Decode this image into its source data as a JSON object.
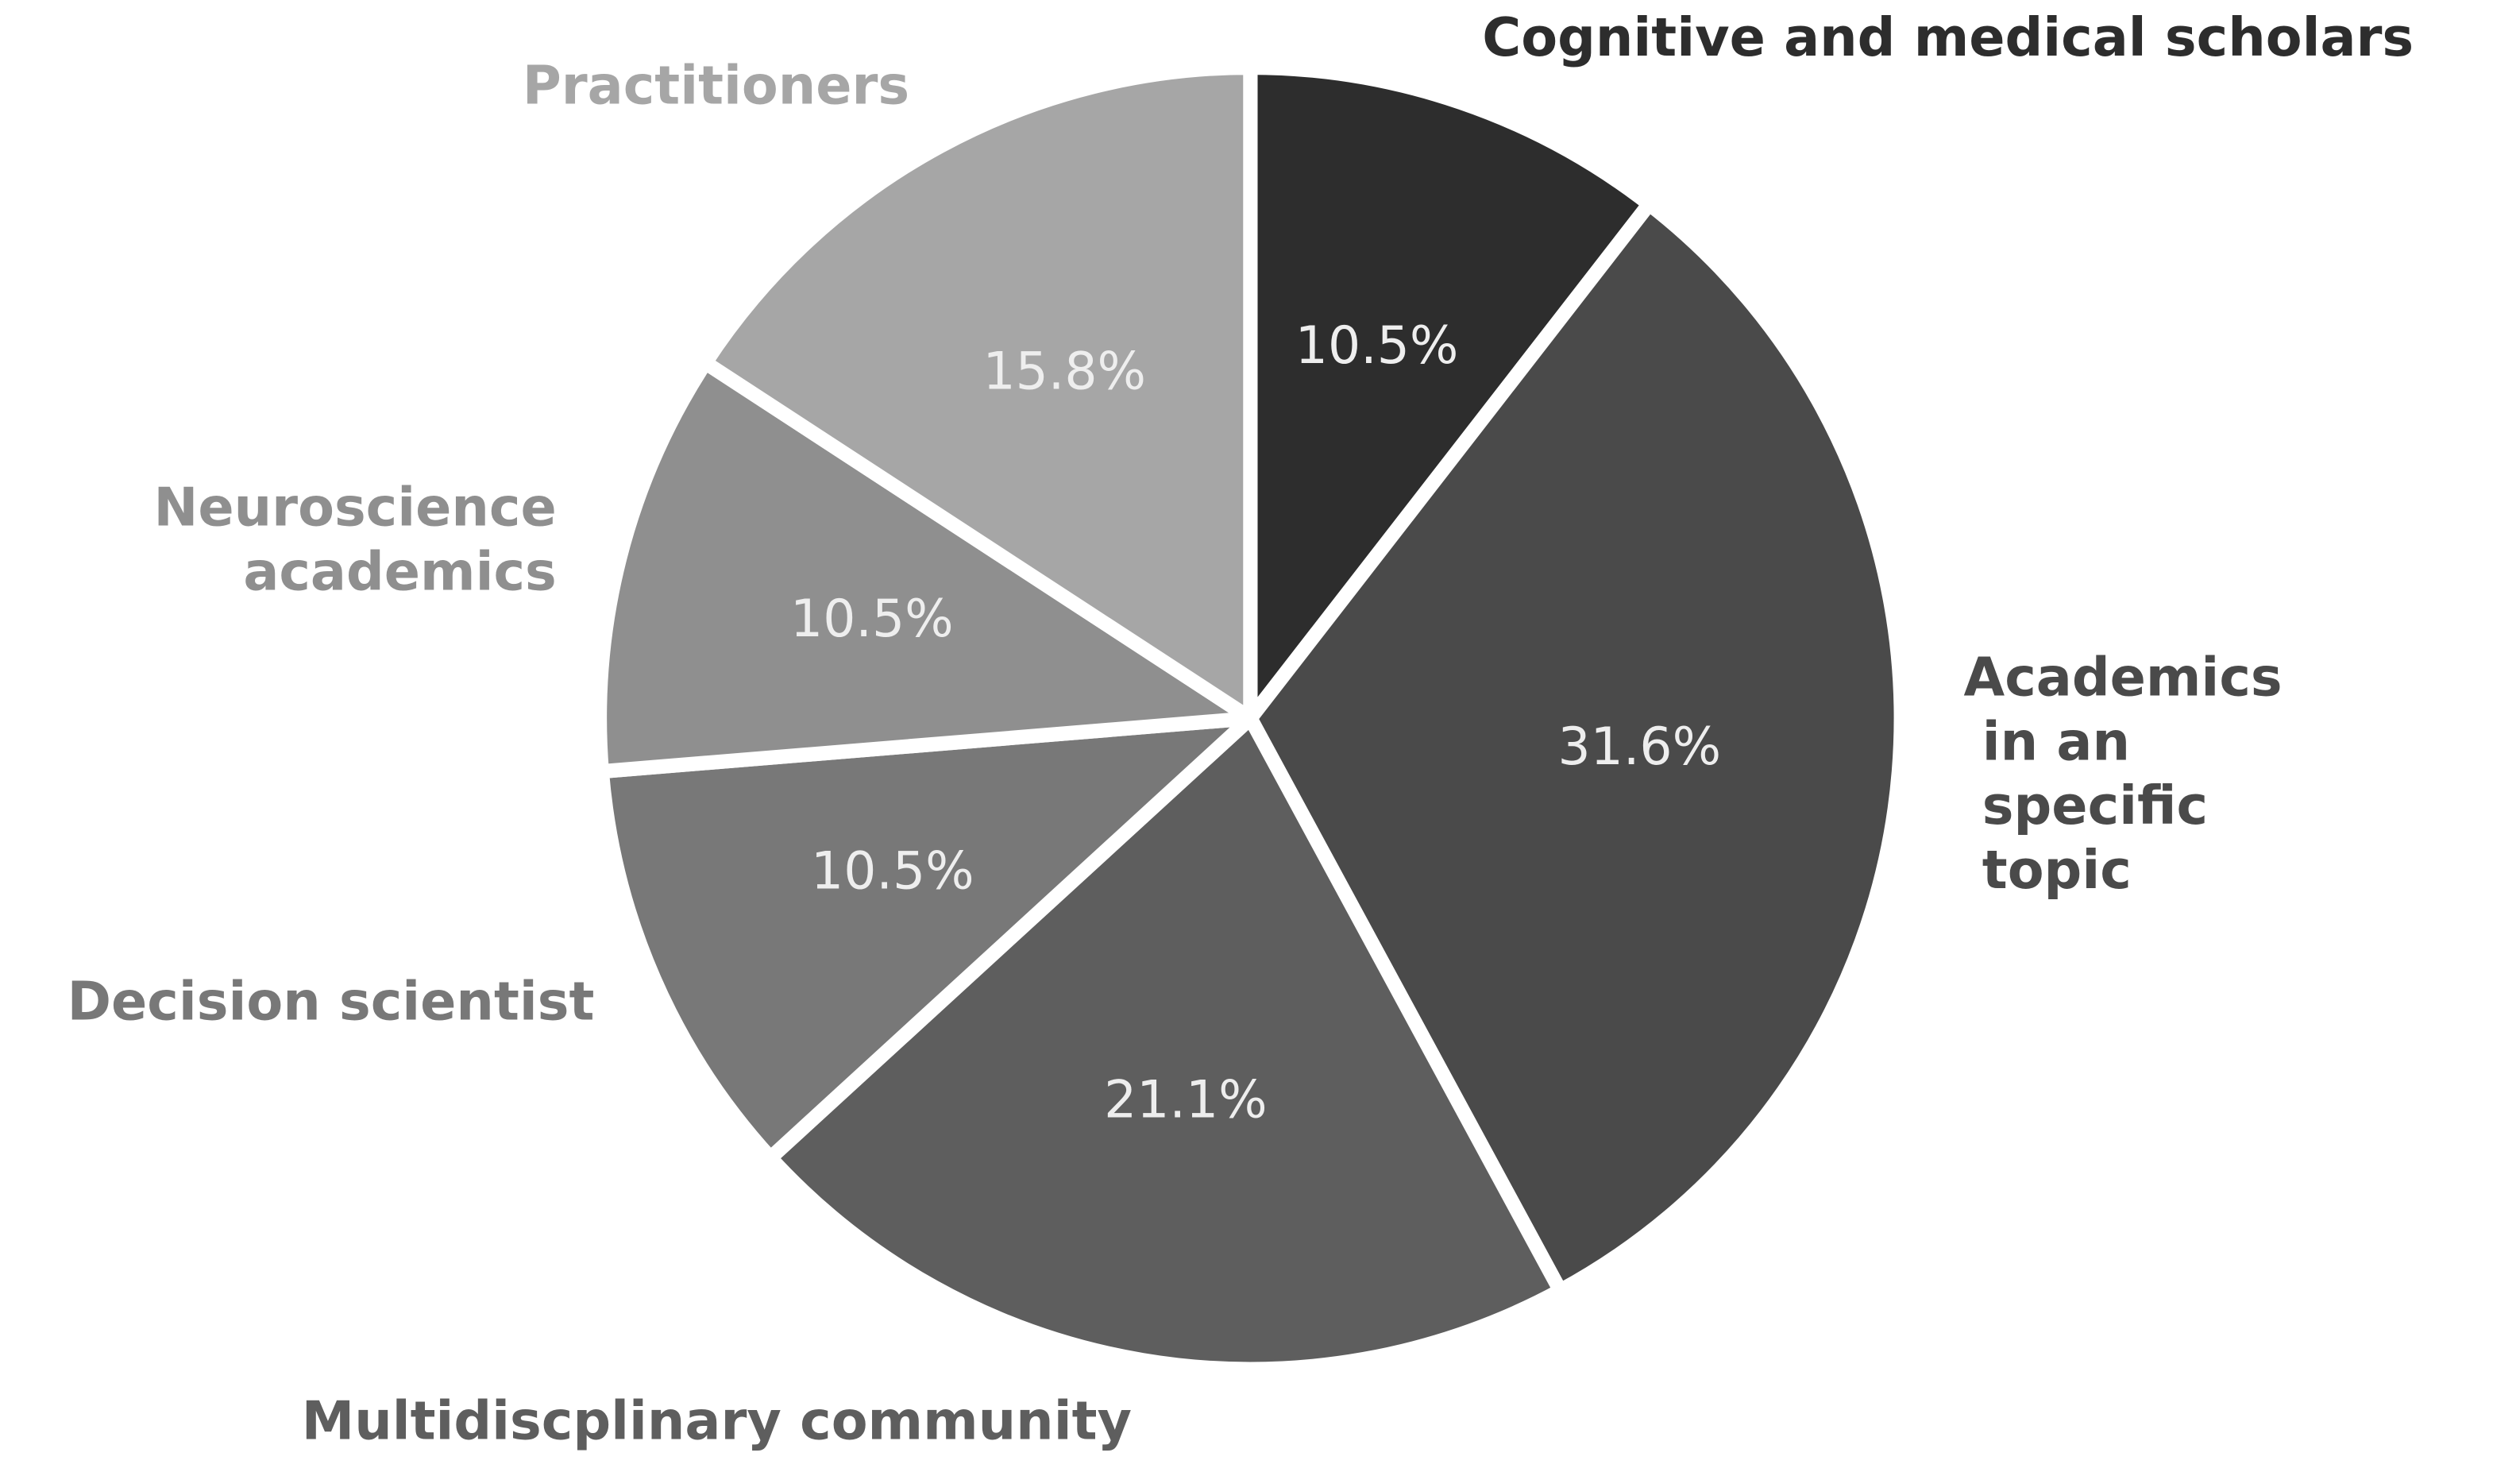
{
  "chart_data": {
    "type": "pie",
    "categories": [
      "Cognitive and medical scholars",
      "Academics\n in an\n specific\n topic",
      "Multidiscplinary community",
      "Decision scientist",
      "Neuroscience\n  academics",
      "Practitioners"
    ],
    "values": [
      10.5,
      31.6,
      21.1,
      10.5,
      10.5,
      15.8
    ],
    "value_labels": [
      "10.5%",
      "31.6%",
      "21.1%",
      "10.5%",
      "10.5%",
      "15.8%"
    ],
    "colors": [
      "#2d2d2d",
      "#4a4a4a",
      "#5e5e5e",
      "#787878",
      "#8f8f8f",
      "#a6a6a6"
    ]
  }
}
